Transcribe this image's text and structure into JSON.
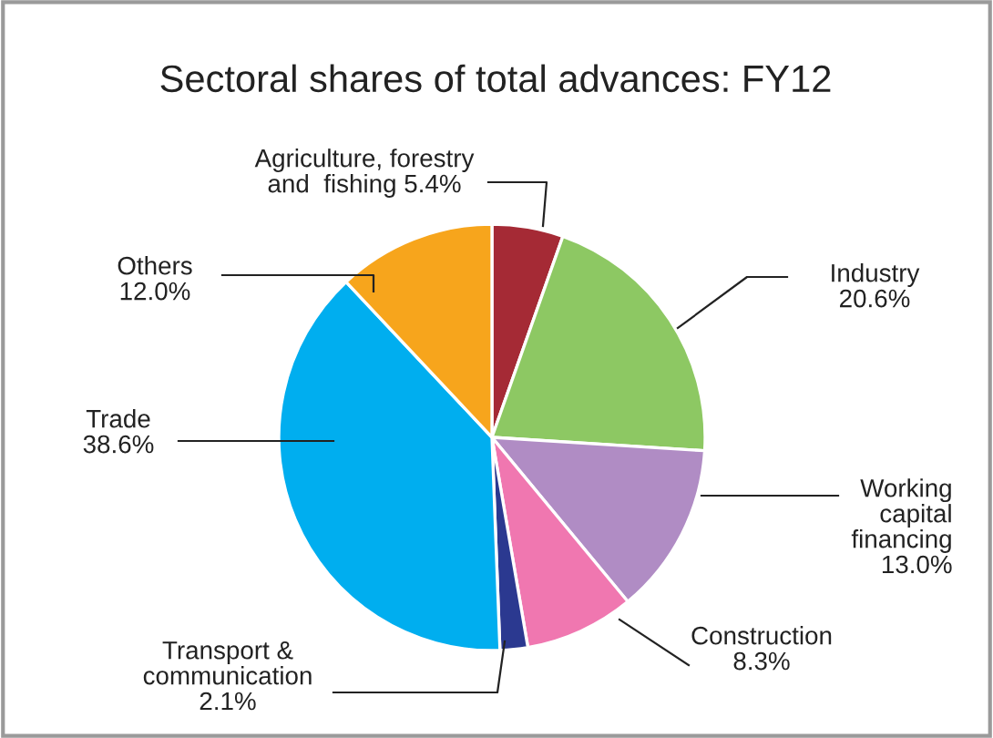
{
  "chart_data": {
    "type": "pie",
    "title": "Sectoral shares of total advances: FY12",
    "categories": [
      "Agriculture, forestry\nand  fishing",
      "Industry",
      "Working\ncapital\nfinancing",
      "Construction",
      "Transport &\ncommunication",
      "Trade",
      "Others"
    ],
    "values": [
      5.4,
      20.6,
      13.0,
      8.3,
      2.1,
      38.6,
      12.0
    ],
    "value_labels": [
      "5.4%",
      "20.6%",
      "13.0%",
      "8.3%",
      "2.1%",
      "38.6%",
      "12.0%"
    ],
    "colors": [
      "#a52a35",
      "#8dc863",
      "#b08cc4",
      "#f077b0",
      "#2b3990",
      "#00aeef",
      "#f7a51c"
    ]
  }
}
